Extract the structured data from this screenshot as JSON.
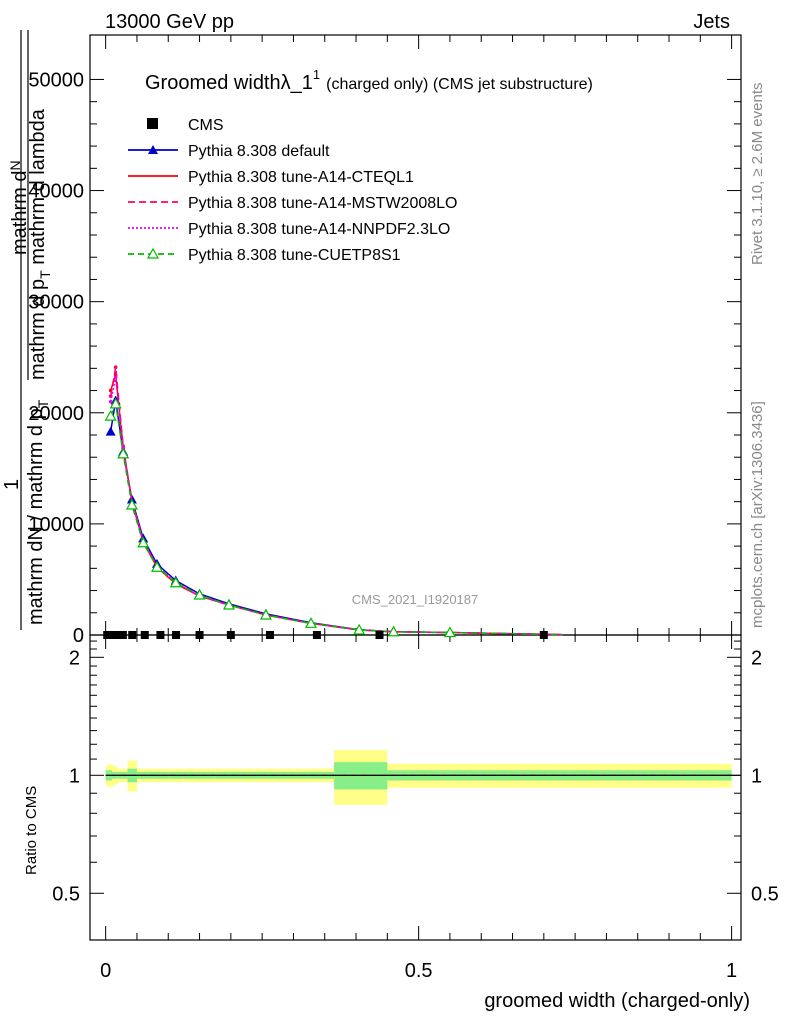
{
  "header": {
    "left": "13000 GeV pp",
    "right": "Jets"
  },
  "side_labels": {
    "rivet": "Rivet 3.1.10, ≥ 2.6M events",
    "mcplots": "mcplots.cern.ch [arXiv:1306.3436]"
  },
  "watermark": "CMS_2021_I1920187",
  "chart_data": [
    {
      "type": "line",
      "title_main": "Groomed widthλ_1",
      "title_sup": "1",
      "title_note": "(charged only) (CMS jet substructure)",
      "ylabel_num": "1",
      "ylabel_den_top": "mathrm d",
      "ylabel_den_top_sub": "N",
      "ylabel_den_bottom": "mathrm dN / mathrm d p",
      "ylabel_den_bottom_sub": "T",
      "ylabel_num_right": "mathrm d",
      "ylabel_num_right_sub": "2",
      "ylabel_num_right_rest": "N",
      "ylabel_den_right": "mathrm d p",
      "ylabel_den_right_sub": "T",
      "ylabel_den_right_rest": " mathrm d lambda",
      "xlim": [
        -0.025,
        1.015
      ],
      "ylim": [
        0,
        54000
      ],
      "yticks": [
        0,
        10000,
        20000,
        30000,
        40000,
        50000
      ],
      "ytick_labels": [
        "0",
        "10000",
        "20000",
        "30000",
        "40000",
        "50000"
      ],
      "legend_position": "top-left",
      "data_x": [
        0.0025,
        0.0075,
        0.0125,
        0.0175,
        0.0275,
        0.0425,
        0.0625,
        0.0875,
        0.1125,
        0.15,
        0.2,
        0.2625,
        0.3375,
        0.4375,
        0.7
      ],
      "cms_values": [
        0,
        0,
        0,
        0,
        0,
        0,
        0,
        0,
        0,
        0,
        0,
        0,
        0,
        0,
        0
      ],
      "series": [
        {
          "name": "Pythia 8.308 default",
          "color": "#0000cc",
          "dash": "",
          "marker": "triangle-filled",
          "x": [
            0.008,
            0.016,
            0.028,
            0.042,
            0.06,
            0.082,
            0.112,
            0.15,
            0.197,
            0.256,
            0.328,
            0.405,
            0.46,
            0.55,
            0.65,
            0.72,
            0.73
          ],
          "y": [
            18300,
            21100,
            16500,
            12200,
            8700,
            6400,
            4900,
            3700,
            2800,
            1900,
            1100,
            470,
            300,
            230,
            120,
            40,
            20
          ]
        },
        {
          "name": "Pythia 8.308 tune-A14-CTEQL1",
          "color": "#ff0000",
          "dash": "",
          "marker": "none",
          "x": [
            0.008,
            0.016,
            0.028,
            0.042,
            0.06,
            0.082,
            0.112,
            0.15,
            0.197,
            0.256,
            0.328,
            0.405,
            0.46,
            0.55,
            0.65,
            0.72,
            0.73
          ],
          "y": [
            22000,
            23400,
            16800,
            12000,
            8400,
            6100,
            4600,
            3500,
            2700,
            1800,
            1050,
            450,
            290,
            220,
            110,
            40,
            20
          ]
        },
        {
          "name": "Pythia 8.308 tune-A14-MSTW2008LO",
          "color": "#ff0066",
          "dash": "7 4",
          "marker": "none",
          "x": [
            0.008,
            0.016,
            0.028,
            0.042,
            0.06,
            0.082,
            0.112,
            0.15,
            0.197,
            0.256,
            0.328,
            0.405,
            0.46,
            0.55,
            0.65,
            0.72,
            0.73
          ],
          "y": [
            21500,
            24100,
            17000,
            12000,
            8400,
            6200,
            4700,
            3500,
            2700,
            1800,
            1050,
            450,
            290,
            220,
            110,
            40,
            20
          ]
        },
        {
          "name": "Pythia 8.308 tune-A14-NNPDF2.3LO",
          "color": "#ee00ee",
          "dash": "2 2",
          "marker": "none",
          "x": [
            0.008,
            0.016,
            0.028,
            0.042,
            0.06,
            0.082,
            0.112,
            0.15,
            0.197,
            0.256,
            0.328,
            0.405,
            0.46,
            0.55,
            0.65,
            0.72,
            0.73
          ],
          "y": [
            21000,
            23200,
            16900,
            12100,
            8500,
            6200,
            4700,
            3500,
            2700,
            1800,
            1050,
            450,
            290,
            220,
            110,
            40,
            20
          ]
        },
        {
          "name": "Pythia 8.308 tune-CUETP8S1",
          "color": "#00bb00",
          "dash": "6 4",
          "marker": "triangle-open",
          "x": [
            0.008,
            0.016,
            0.028,
            0.042,
            0.06,
            0.082,
            0.112,
            0.15,
            0.197,
            0.256,
            0.328,
            0.405,
            0.46,
            0.55,
            0.65,
            0.72,
            0.73
          ],
          "y": [
            19700,
            20800,
            16300,
            11700,
            8300,
            6100,
            4700,
            3600,
            2700,
            1800,
            1050,
            450,
            290,
            220,
            110,
            40,
            20
          ]
        }
      ],
      "cms_legend": "CMS"
    },
    {
      "type": "area",
      "ylabel": "Ratio to CMS",
      "xlabel": "groomed width (charged-only)",
      "xlim": [
        -0.025,
        1.015
      ],
      "ylim": [
        0.38,
        2.28
      ],
      "yticks": [
        0.5,
        1,
        2
      ],
      "ytick_labels": [
        "0.5",
        "1",
        "2"
      ],
      "xticks": [
        0,
        0.5,
        1
      ],
      "xtick_labels": [
        "0",
        "0.5",
        "1"
      ],
      "band_colors": {
        "inner": "#88ee88",
        "outer": "#ffff88"
      },
      "bands": [
        {
          "x0": 0.0,
          "x1": 0.005,
          "inner": 0.03,
          "outer": 0.06
        },
        {
          "x0": 0.005,
          "x1": 0.01,
          "inner": 0.03,
          "outer": 0.07
        },
        {
          "x0": 0.01,
          "x1": 0.015,
          "inner": 0.02,
          "outer": 0.06
        },
        {
          "x0": 0.015,
          "x1": 0.02,
          "inner": 0.02,
          "outer": 0.05
        },
        {
          "x0": 0.02,
          "x1": 0.035,
          "inner": 0.02,
          "outer": 0.04
        },
        {
          "x0": 0.035,
          "x1": 0.05,
          "inner": 0.04,
          "outer": 0.09
        },
        {
          "x0": 0.05,
          "x1": 0.075,
          "inner": 0.02,
          "outer": 0.04
        },
        {
          "x0": 0.075,
          "x1": 0.1,
          "inner": 0.02,
          "outer": 0.04
        },
        {
          "x0": 0.1,
          "x1": 0.125,
          "inner": 0.02,
          "outer": 0.04
        },
        {
          "x0": 0.125,
          "x1": 0.175,
          "inner": 0.02,
          "outer": 0.04
        },
        {
          "x0": 0.175,
          "x1": 0.225,
          "inner": 0.02,
          "outer": 0.04
        },
        {
          "x0": 0.225,
          "x1": 0.3,
          "inner": 0.02,
          "outer": 0.04
        },
        {
          "x0": 0.3,
          "x1": 0.365,
          "inner": 0.02,
          "outer": 0.04
        },
        {
          "x0": 0.365,
          "x1": 0.45,
          "inner": 0.08,
          "outer": 0.16
        },
        {
          "x0": 0.45,
          "x1": 1.0,
          "inner": 0.03,
          "outer": 0.07
        }
      ],
      "series": [
        {
          "name": "Pythia 8.308 default",
          "color": "#0000cc",
          "dash": "",
          "y": 1.0
        },
        {
          "name": "Pythia 8.308 tune-A14-CTEQL1",
          "color": "#ff0000",
          "dash": "",
          "y": 1.0
        },
        {
          "name": "Pythia 8.308 tune-A14-MSTW2008LO",
          "color": "#ff0066",
          "dash": "7 4",
          "y": 1.0
        },
        {
          "name": "Pythia 8.308 tune-A14-NNPDF2.3LO",
          "color": "#ee00ee",
          "dash": "2 2",
          "y": 1.0
        },
        {
          "name": "Pythia 8.308 tune-CUETP8S1",
          "color": "#00bb00",
          "dash": "6 4",
          "y": 1.0
        }
      ]
    }
  ]
}
